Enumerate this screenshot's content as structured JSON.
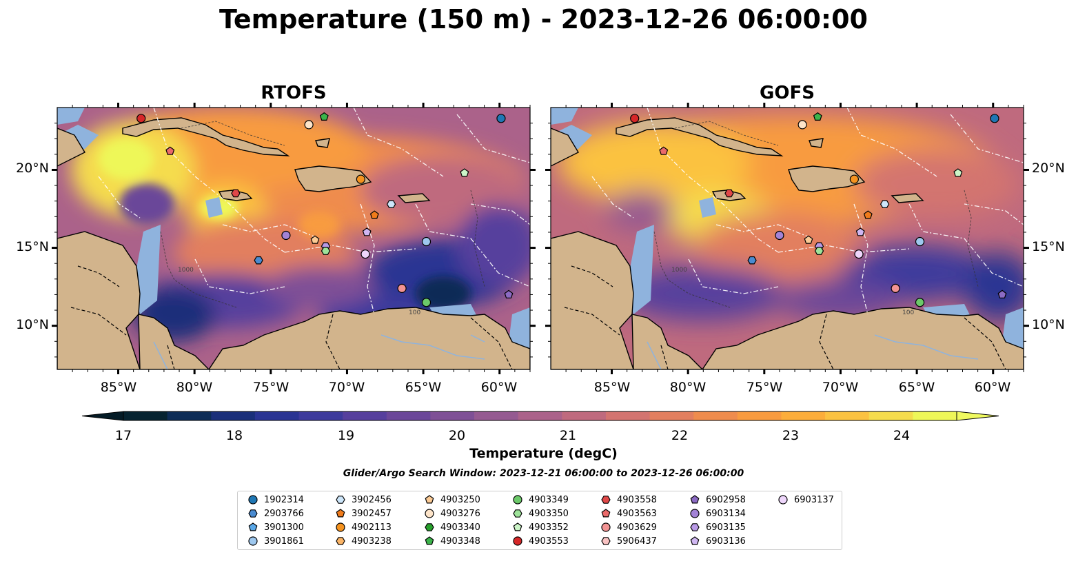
{
  "figure": {
    "title": "Temperature (150 m) - 2023-12-26 06:00:00",
    "panels": [
      {
        "id": "rtofs",
        "title": "RTOFS"
      },
      {
        "id": "gofs",
        "title": "GOFS"
      }
    ],
    "lon_ticks": [
      "85°W",
      "80°W",
      "75°W",
      "70°W",
      "65°W",
      "60°W"
    ],
    "lat_ticks": [
      "20°N",
      "15°N",
      "10°N"
    ],
    "colorbar": {
      "label": "Temperature (degC)",
      "ticks": [
        "17",
        "18",
        "19",
        "20",
        "21",
        "22",
        "23",
        "24"
      ],
      "range": [
        17,
        24.5
      ],
      "step": 0.5,
      "colors": [
        "#062330",
        "#0d2c56",
        "#1a2f7a",
        "#2a3493",
        "#3d3a9c",
        "#563f9d",
        "#6b4799",
        "#7f5096",
        "#955a91",
        "#ab628a",
        "#bf6a7e",
        "#d37470",
        "#e27f5f",
        "#ef8c4d",
        "#f89b3f",
        "#fcad3a",
        "#fbc241",
        "#f5dc4d",
        "#eef758"
      ]
    },
    "contour_labels": [
      "100",
      "1000",
      "100",
      "1000",
      "100",
      "1000"
    ],
    "window_text": "Glider/Argo Search Window: 2023-12-21 06:00:00 to 2023-12-26 06:00:00",
    "colors": {
      "land": "#d2b48c",
      "shelf": "#8fb3dd",
      "deep_pacific": "#062330"
    }
  },
  "legend": {
    "items": [
      {
        "id": "1902314",
        "marker": "circle",
        "color": "#1f77b4"
      },
      {
        "id": "2903766",
        "marker": "hexagon",
        "color": "#4a8bd0"
      },
      {
        "id": "3901300",
        "marker": "pentagon",
        "color": "#5aa8e8"
      },
      {
        "id": "3901861",
        "marker": "circle",
        "color": "#9ec8ef"
      },
      {
        "id": "3902456",
        "marker": "hexagon",
        "color": "#cde6fa"
      },
      {
        "id": "3902457",
        "marker": "pentagon",
        "color": "#f07b1b"
      },
      {
        "id": "4902113",
        "marker": "circle",
        "color": "#f5931f"
      },
      {
        "id": "4903238",
        "marker": "hexagon",
        "color": "#fbb567"
      },
      {
        "id": "4903250",
        "marker": "pentagon",
        "color": "#fccb95"
      },
      {
        "id": "4903276",
        "marker": "circle",
        "color": "#fde4c9"
      },
      {
        "id": "4903340",
        "marker": "hexagon",
        "color": "#27a02c"
      },
      {
        "id": "4903348",
        "marker": "pentagon",
        "color": "#3cb44b"
      },
      {
        "id": "4903349",
        "marker": "circle",
        "color": "#6cc96a"
      },
      {
        "id": "4903350",
        "marker": "hexagon",
        "color": "#9ee39a"
      },
      {
        "id": "4903352",
        "marker": "pentagon",
        "color": "#ccf5c8"
      },
      {
        "id": "4903553",
        "marker": "circle",
        "color": "#d62728"
      },
      {
        "id": "4903558",
        "marker": "hexagon",
        "color": "#e04848"
      },
      {
        "id": "4903563",
        "marker": "pentagon",
        "color": "#ea6a6a"
      },
      {
        "id": "4903629",
        "marker": "circle",
        "color": "#f29393"
      },
      {
        "id": "5906437",
        "marker": "hexagon",
        "color": "#f8c2c2"
      },
      {
        "id": "6902958",
        "marker": "pentagon",
        "color": "#8c6bc4"
      },
      {
        "id": "6903134",
        "marker": "circle",
        "color": "#a383d6"
      },
      {
        "id": "6903135",
        "marker": "hexagon",
        "color": "#b99ae6"
      },
      {
        "id": "6903136",
        "marker": "pentagon",
        "color": "#d0b7f2"
      },
      {
        "id": "6903137",
        "marker": "circle",
        "color": "#eed6fb"
      }
    ]
  },
  "platforms": [
    {
      "id": "4903553",
      "lon": -83.5,
      "lat": 23.3
    },
    {
      "id": "4903348",
      "lon": -71.5,
      "lat": 23.4
    },
    {
      "id": "4903276",
      "lon": -72.5,
      "lat": 22.9
    },
    {
      "id": "1902314",
      "lon": -59.9,
      "lat": 23.3
    },
    {
      "id": "4903563",
      "lon": -81.6,
      "lat": 21.2
    },
    {
      "id": "4903352",
      "lon": -62.3,
      "lat": 19.8
    },
    {
      "id": "4902113",
      "lon": -69.1,
      "lat": 19.4
    },
    {
      "id": "4903558",
      "lon": -77.3,
      "lat": 18.5
    },
    {
      "id": "3902456",
      "lon": -67.1,
      "lat": 17.8
    },
    {
      "id": "3902457",
      "lon": -68.2,
      "lat": 17.1
    },
    {
      "id": "6903136",
      "lon": -68.7,
      "lat": 16.0
    },
    {
      "id": "6903134",
      "lon": -74.0,
      "lat": 15.8
    },
    {
      "id": "4903250",
      "lon": -72.1,
      "lat": 15.5
    },
    {
      "id": "3901861",
      "lon": -64.8,
      "lat": 15.4
    },
    {
      "id": "6903135",
      "lon": -71.4,
      "lat": 15.1
    },
    {
      "id": "4903350",
      "lon": -71.4,
      "lat": 14.8
    },
    {
      "id": "6903137",
      "lon": -68.8,
      "lat": 14.6
    },
    {
      "id": "2903766",
      "lon": -75.8,
      "lat": 14.2
    },
    {
      "id": "4903629",
      "lon": -66.4,
      "lat": 12.4
    },
    {
      "id": "6902958",
      "lon": -59.4,
      "lat": 12.0
    },
    {
      "id": "4903349",
      "lon": -64.8,
      "lat": 11.5
    }
  ]
}
